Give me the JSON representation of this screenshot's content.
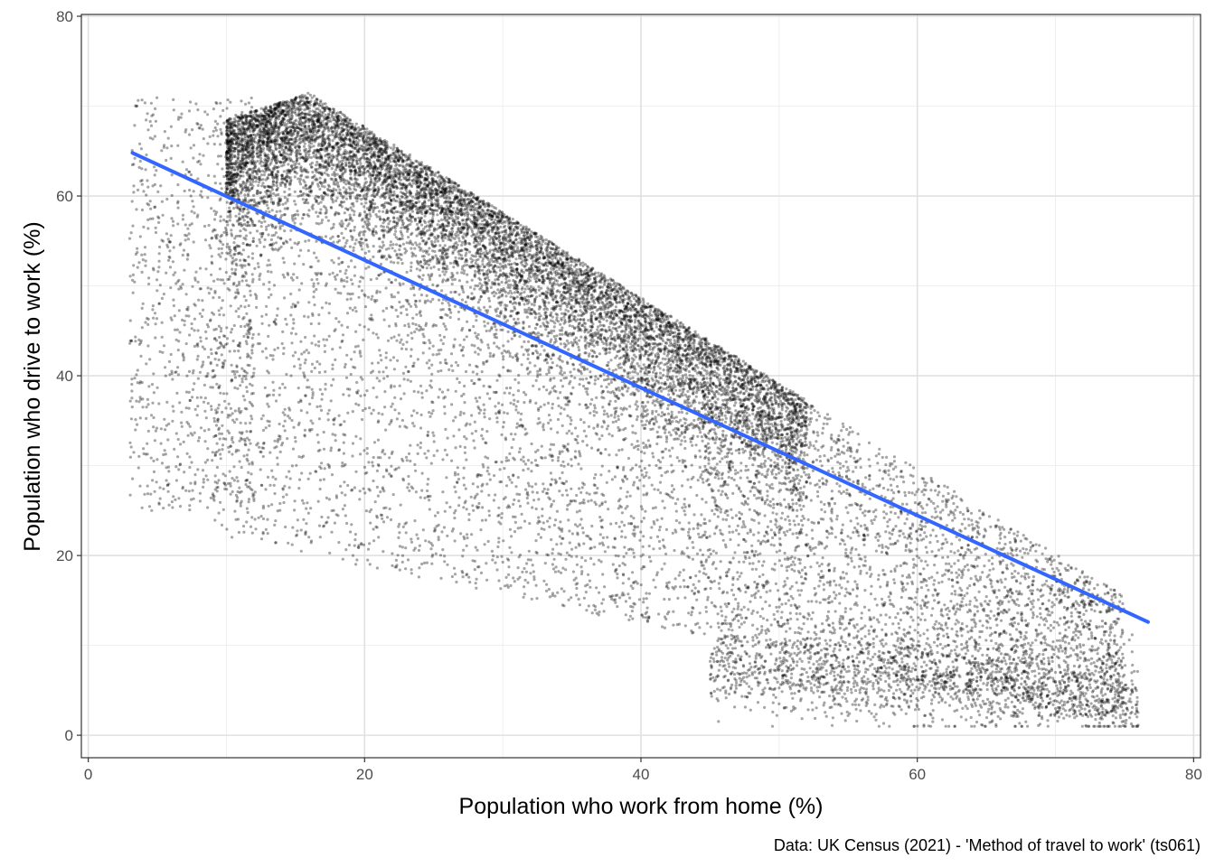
{
  "chart_data": {
    "type": "scatter",
    "xlabel": "Population who work from home (%)",
    "ylabel": "Population who drive to work (%)",
    "caption": "Data: UK Census (2021) - 'Method of travel to work' (ts061)",
    "xlim": [
      -0.5,
      80.5
    ],
    "ylim": [
      -2.5,
      80.2
    ],
    "x_ticks": [
      0,
      20,
      40,
      60,
      80
    ],
    "y_ticks": [
      0,
      20,
      40,
      60,
      80
    ],
    "x_tick_labels": [
      "0",
      "20",
      "40",
      "60",
      "80"
    ],
    "y_tick_labels": [
      "0",
      "20",
      "40",
      "60",
      "80"
    ],
    "grid": true,
    "point_count_approx": 34000,
    "point_color": "#000000",
    "point_opacity": 0.35,
    "trend_line": {
      "color": "#3366FF",
      "x": [
        3.2,
        76.7
      ],
      "y": [
        64.8,
        12.6
      ]
    },
    "point_cloud_outline": {
      "x": [
        3,
        8,
        14,
        20,
        28,
        36,
        44,
        50,
        56,
        62,
        68,
        72,
        77,
        77,
        72,
        66,
        60,
        54,
        48,
        42,
        36,
        30,
        24,
        18,
        14,
        10,
        7,
        5,
        3
      ],
      "y": [
        58,
        69,
        73,
        70,
        64,
        57,
        48,
        41,
        35,
        28,
        22,
        18,
        6,
        1,
        2,
        4,
        3,
        5,
        5,
        6,
        6,
        7,
        8,
        10,
        11,
        20,
        23,
        30,
        45
      ]
    }
  }
}
